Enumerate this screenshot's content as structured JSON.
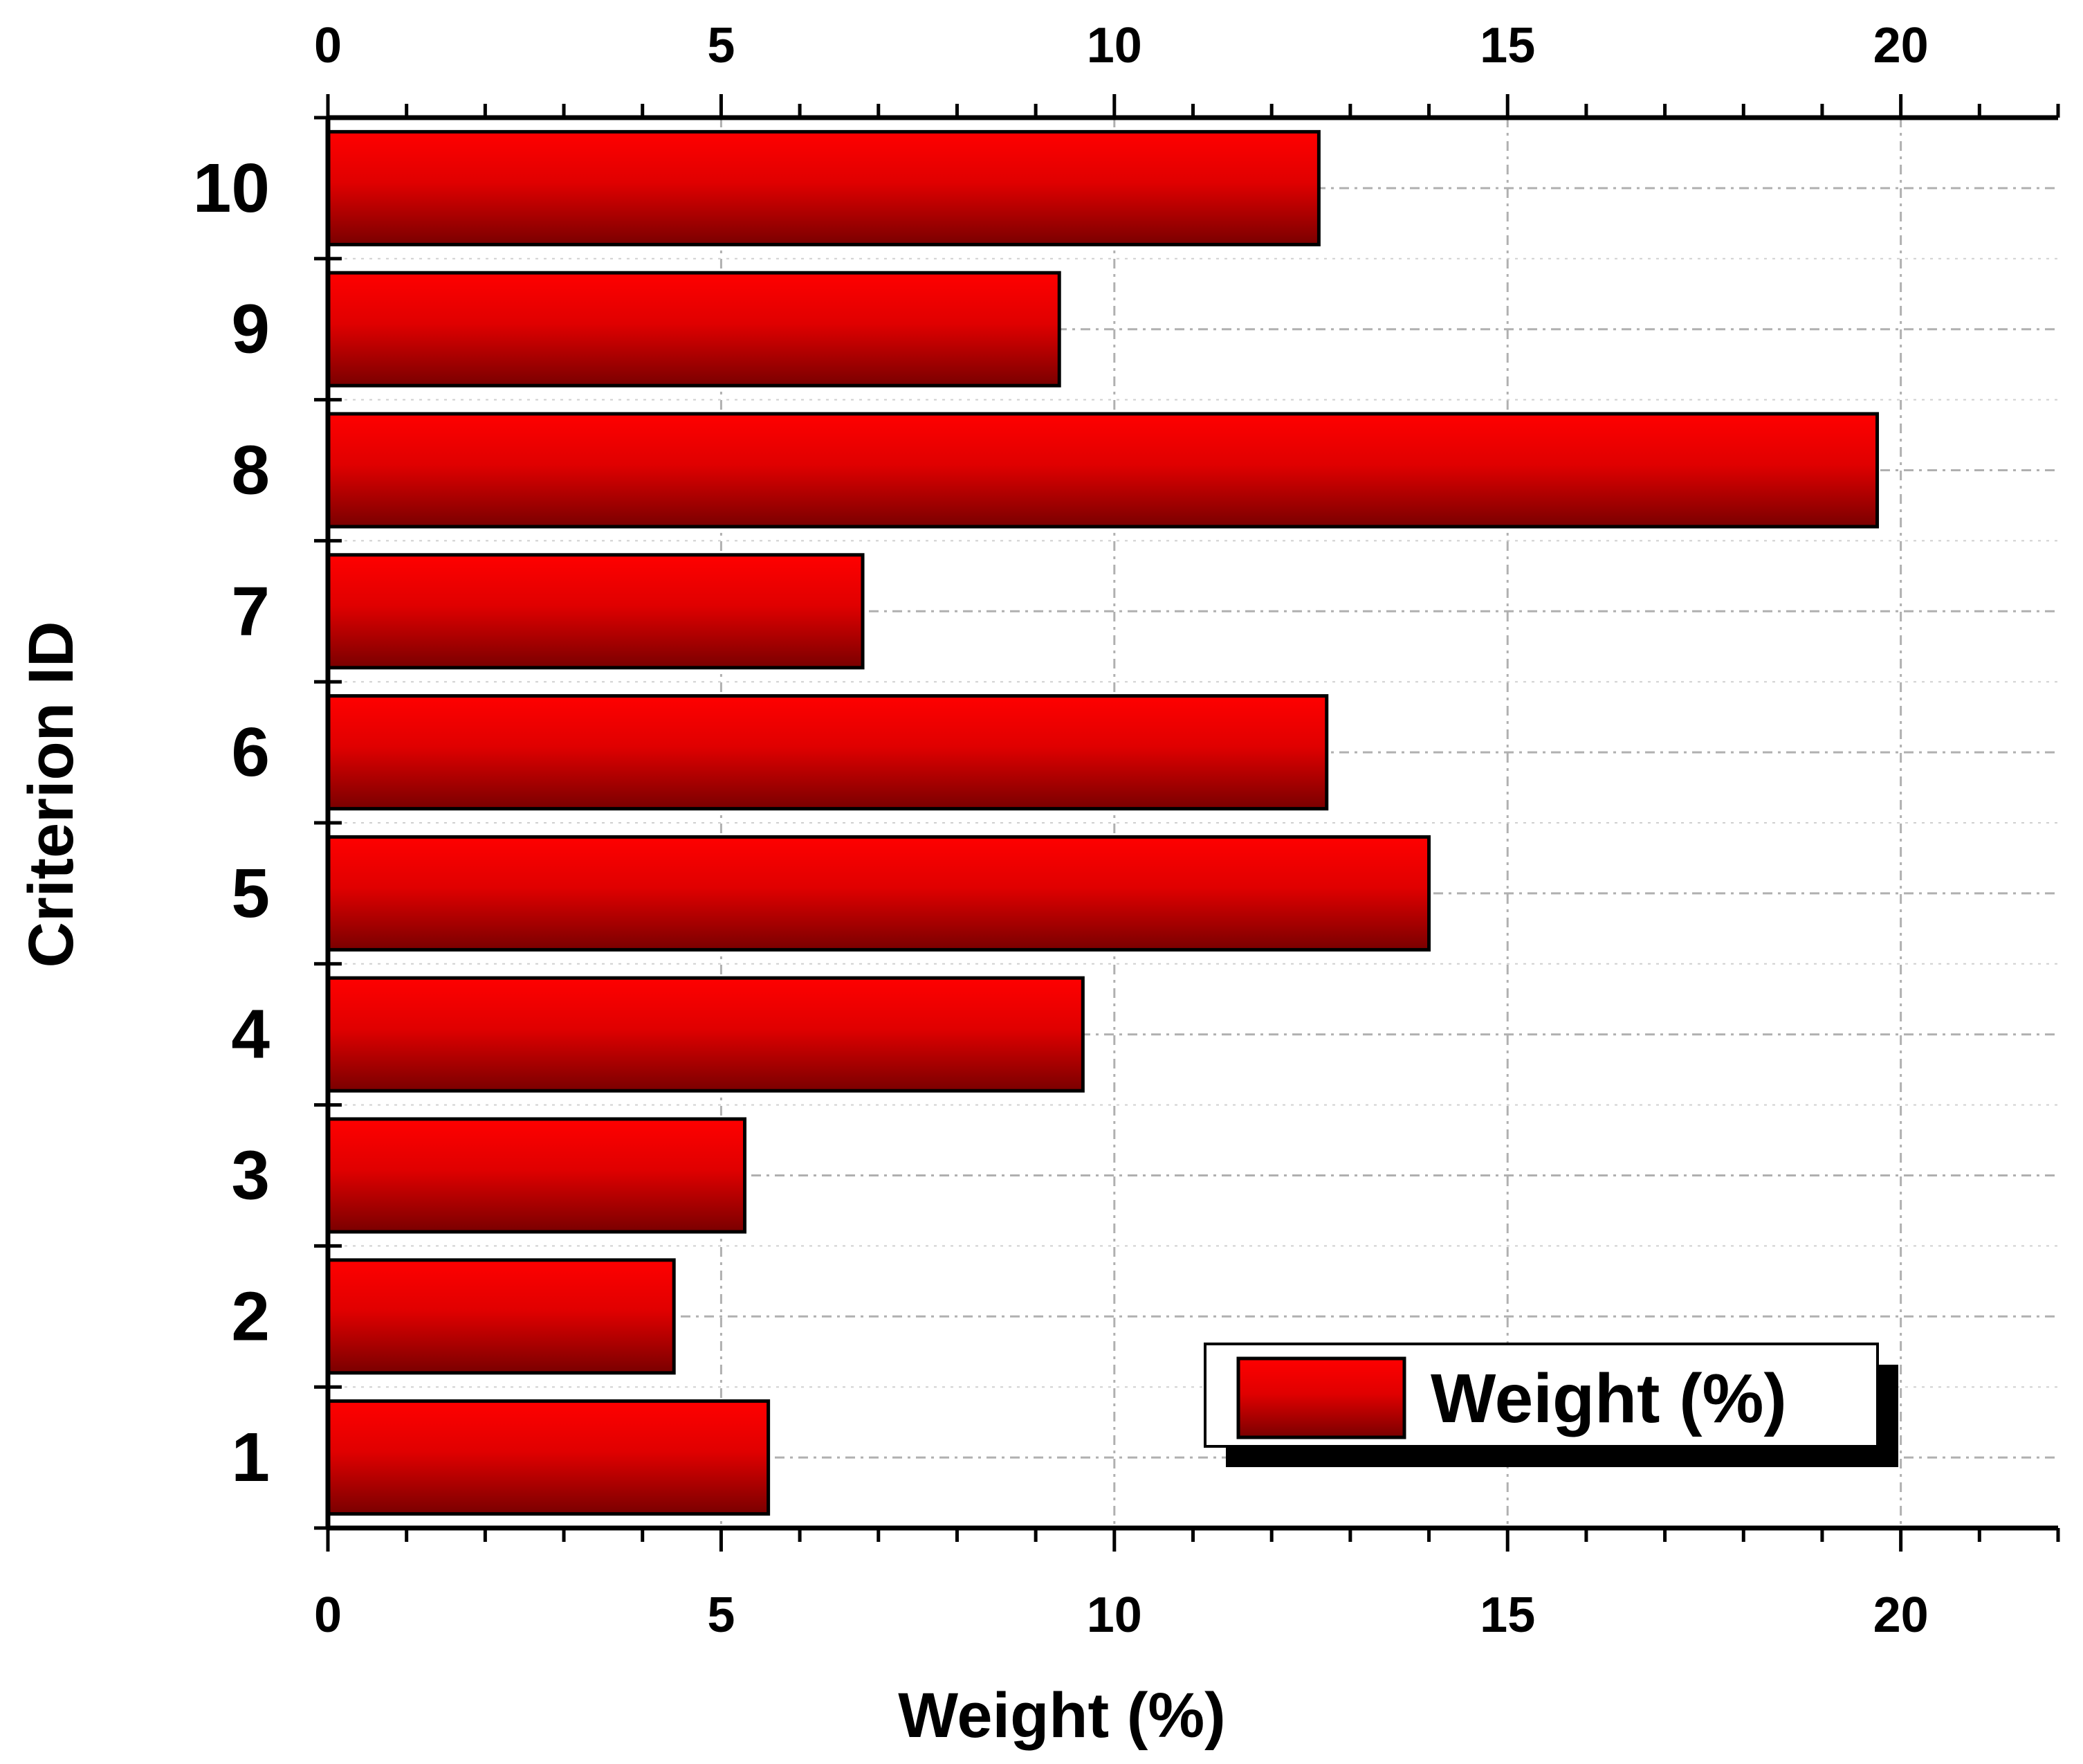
{
  "chart_data": {
    "type": "bar",
    "orientation": "horizontal",
    "categories": [
      "1",
      "2",
      "3",
      "4",
      "5",
      "6",
      "7",
      "8",
      "9",
      "10"
    ],
    "series": [
      {
        "name": "Weight (%)",
        "values": [
          5.6,
          4.4,
          5.3,
          9.6,
          14.0,
          12.7,
          6.8,
          19.7,
          9.3,
          12.6
        ]
      }
    ],
    "xlabel": "Weight (%)",
    "ylabel": "Criterion ID",
    "xlim": [
      0,
      22
    ],
    "xticks": [
      "0",
      "5",
      "10",
      "15",
      "20"
    ],
    "xtick_values": [
      0,
      5,
      10,
      15,
      20
    ],
    "grid": true,
    "legend_position": "bottom-right",
    "colors": {
      "bar_light": "#ff0000",
      "bar_dark": "#7a0000",
      "axis": "#000000",
      "grid": "#b0b0b0"
    }
  }
}
